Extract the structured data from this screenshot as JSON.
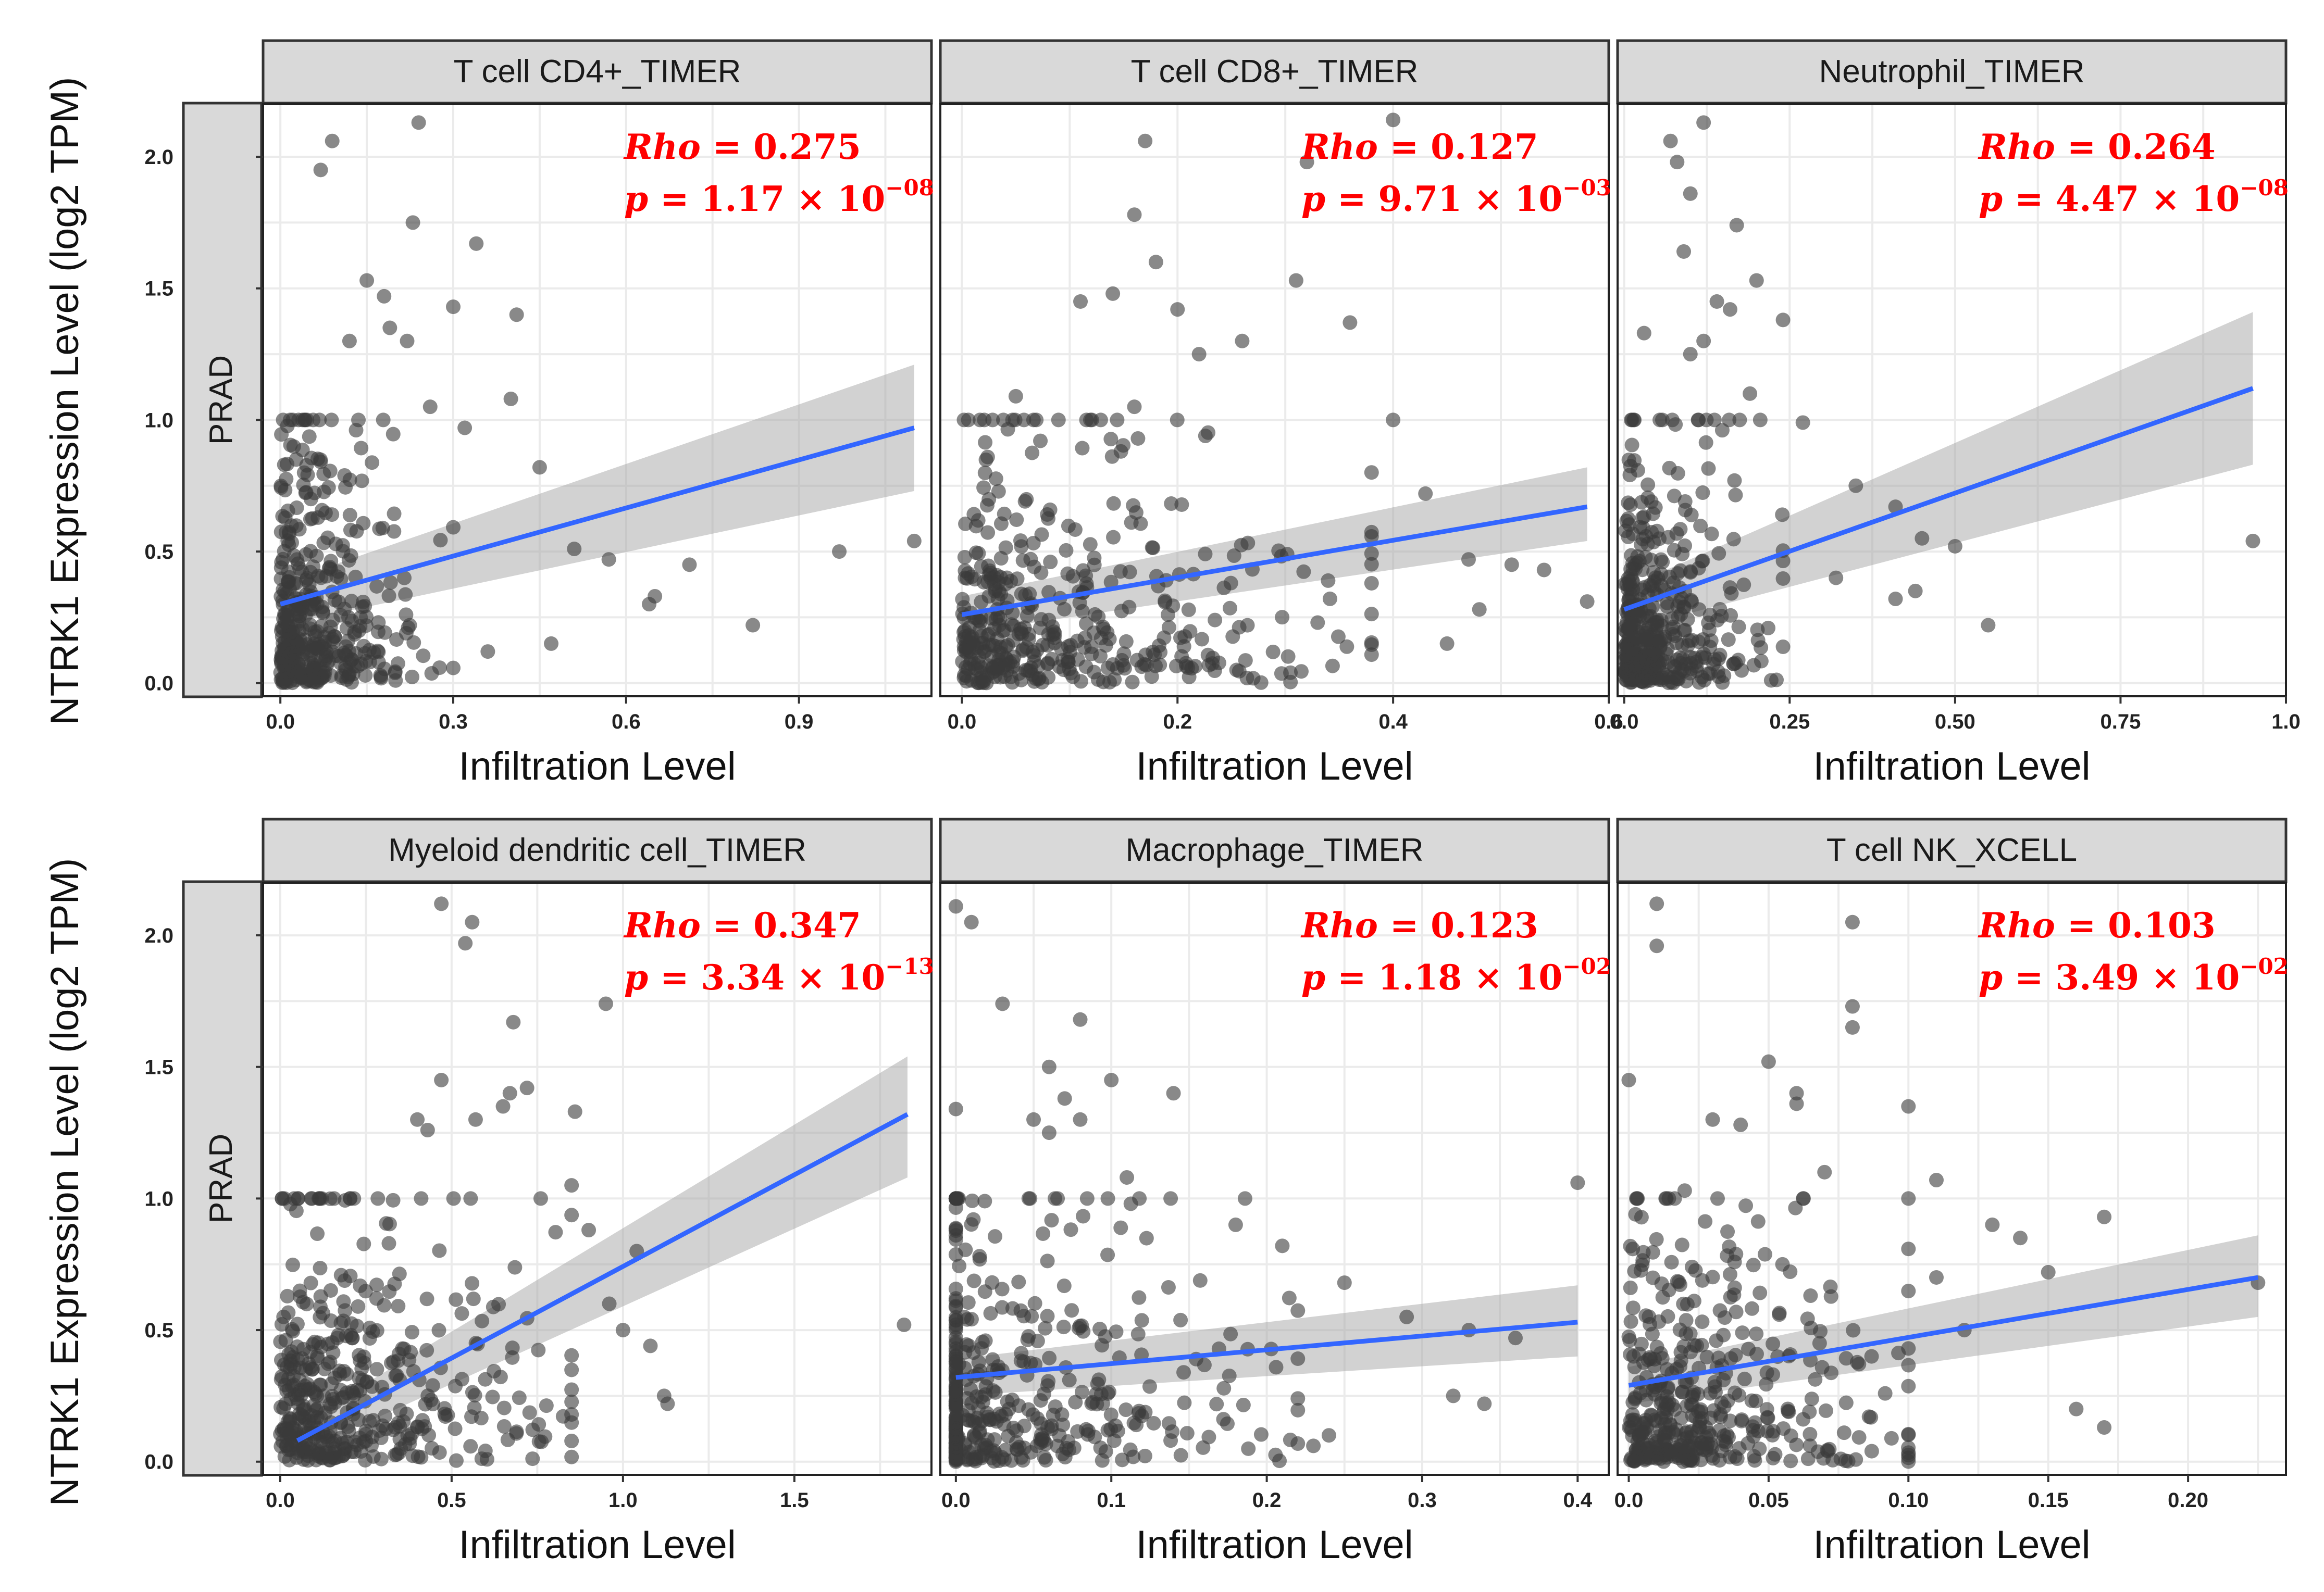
{
  "colors": {
    "strip_fill": "#d9d9d9",
    "strip_border": "#333333",
    "grid": "#ebebeb",
    "point": "#3a3a3a",
    "line": "#3366ff",
    "band": "#a6a6a6",
    "stat": "#ff0000"
  },
  "row_label": "PRAD",
  "y_axis_title": "NTRK1 Expression Level (log2 TPM)",
  "x_axis_title": "Infiltration Level",
  "chart_data": [
    {
      "type": "scatter",
      "title": "T cell CD4+_TIMER",
      "xlabel": "Infiltration Level",
      "ylabel": "NTRK1 Expression Level (log2 TPM)",
      "xlim": [
        -0.03,
        1.13
      ],
      "ylim": [
        -0.05,
        2.2
      ],
      "xticks": [
        "0.0",
        "0.3",
        "0.6",
        "0.9"
      ],
      "yticks": [
        "0.0",
        "0.5",
        "1.0",
        "1.5",
        "2.0"
      ],
      "rho": "0.275",
      "p_mantissa": "1.17",
      "p_exp": "−08",
      "fit": {
        "x": [
          0.0,
          1.1
        ],
        "y": [
          0.3,
          0.97
        ],
        "band_lo": [
          0.22,
          0.73
        ],
        "band_hi": [
          0.38,
          1.21
        ]
      },
      "cluster": {
        "x_max": 0.3,
        "x_decay": 0.07,
        "y_decay": 0.28
      },
      "outliers": [
        [
          0.07,
          1.95
        ],
        [
          0.09,
          2.06
        ],
        [
          0.24,
          2.13
        ],
        [
          0.23,
          1.75
        ],
        [
          0.34,
          1.67
        ],
        [
          0.15,
          1.53
        ],
        [
          0.18,
          1.47
        ],
        [
          0.3,
          1.43
        ],
        [
          0.41,
          1.4
        ],
        [
          0.22,
          1.3
        ],
        [
          0.12,
          1.3
        ],
        [
          0.4,
          1.08
        ],
        [
          0.19,
          1.35
        ],
        [
          0.26,
          1.05
        ],
        [
          0.32,
          0.97
        ],
        [
          0.45,
          0.82
        ],
        [
          0.51,
          0.51
        ],
        [
          0.57,
          0.47
        ],
        [
          0.65,
          0.33
        ],
        [
          0.64,
          0.3
        ],
        [
          0.71,
          0.45
        ],
        [
          0.82,
          0.22
        ],
        [
          0.97,
          0.5
        ],
        [
          1.1,
          0.54
        ],
        [
          0.47,
          0.15
        ],
        [
          0.36,
          0.12
        ]
      ]
    },
    {
      "type": "scatter",
      "title": "T cell CD8+_TIMER",
      "xlabel": "Infiltration Level",
      "ylabel": "NTRK1 Expression Level (log2 TPM)",
      "xlim": [
        -0.02,
        0.6
      ],
      "ylim": [
        -0.05,
        2.2
      ],
      "xticks": [
        "0.0",
        "0.2",
        "0.4",
        "0.6"
      ],
      "yticks": [
        "0.0",
        "0.5",
        "1.0",
        "1.5",
        "2.0"
      ],
      "rho": "0.127",
      "p_mantissa": "9.71",
      "p_exp": "−03",
      "fit": {
        "x": [
          0.0,
          0.58
        ],
        "y": [
          0.26,
          0.67
        ],
        "band_lo": [
          0.19,
          0.54
        ],
        "band_hi": [
          0.33,
          0.82
        ]
      },
      "cluster": {
        "x_max": 0.38,
        "x_decay": 0.11,
        "y_decay": 0.32
      },
      "outliers": [
        [
          0.17,
          2.06
        ],
        [
          0.4,
          2.14
        ],
        [
          0.32,
          1.98
        ],
        [
          0.18,
          1.6
        ],
        [
          0.16,
          1.78
        ],
        [
          0.11,
          1.45
        ],
        [
          0.14,
          1.48
        ],
        [
          0.2,
          1.42
        ],
        [
          0.26,
          1.3
        ],
        [
          0.31,
          1.53
        ],
        [
          0.36,
          1.37
        ],
        [
          0.05,
          1.09
        ],
        [
          0.16,
          1.05
        ],
        [
          0.22,
          1.25
        ],
        [
          0.4,
          1.0
        ],
        [
          0.43,
          0.72
        ],
        [
          0.47,
          0.47
        ],
        [
          0.51,
          0.45
        ],
        [
          0.54,
          0.43
        ],
        [
          0.48,
          0.28
        ],
        [
          0.58,
          0.31
        ],
        [
          0.45,
          0.15
        ],
        [
          0.33,
          0.23
        ]
      ]
    },
    {
      "type": "scatter",
      "title": "Neutrophil_TIMER",
      "xlabel": "Infiltration Level",
      "ylabel": "NTRK1 Expression Level (log2 TPM)",
      "xlim": [
        -0.01,
        1.0
      ],
      "ylim": [
        -0.05,
        2.2
      ],
      "xticks": [
        "0.0",
        "0.25",
        "0.50",
        "0.75",
        "1.0"
      ],
      "yticks": [
        "0.0",
        "0.5",
        "1.0",
        "1.5",
        "2.0"
      ],
      "rho": "0.264",
      "p_mantissa": "4.47",
      "p_exp": "−08",
      "fit": {
        "x": [
          0.0,
          0.95
        ],
        "y": [
          0.28,
          1.12
        ],
        "band_lo": [
          0.2,
          0.83
        ],
        "band_hi": [
          0.36,
          1.41
        ]
      },
      "cluster": {
        "x_max": 0.24,
        "x_decay": 0.06,
        "y_decay": 0.28
      },
      "outliers": [
        [
          0.07,
          2.06
        ],
        [
          0.12,
          2.13
        ],
        [
          0.08,
          1.98
        ],
        [
          0.1,
          1.86
        ],
        [
          0.17,
          1.74
        ],
        [
          0.09,
          1.64
        ],
        [
          0.14,
          1.45
        ],
        [
          0.2,
          1.53
        ],
        [
          0.24,
          1.38
        ],
        [
          0.16,
          1.42
        ],
        [
          0.12,
          1.3
        ],
        [
          0.1,
          1.25
        ],
        [
          0.03,
          1.33
        ],
        [
          0.19,
          1.1
        ],
        [
          0.27,
          0.99
        ],
        [
          0.35,
          0.75
        ],
        [
          0.41,
          0.67
        ],
        [
          0.45,
          0.55
        ],
        [
          0.5,
          0.52
        ],
        [
          0.44,
          0.35
        ],
        [
          0.55,
          0.22
        ],
        [
          0.41,
          0.32
        ],
        [
          0.95,
          0.54
        ],
        [
          0.32,
          0.4
        ]
      ]
    },
    {
      "type": "scatter",
      "title": "Myeloid dendritic cell_TIMER",
      "xlabel": "Infiltration Level",
      "ylabel": "NTRK1 Expression Level (log2 TPM)",
      "xlim": [
        -0.05,
        1.9
      ],
      "ylim": [
        -0.05,
        2.2
      ],
      "xticks": [
        "0.0",
        "0.5",
        "1.0",
        "1.5"
      ],
      "yticks": [
        "0.0",
        "0.5",
        "1.0",
        "1.5",
        "2.0"
      ],
      "rho": "0.347",
      "p_mantissa": "3.34",
      "p_exp": "−13",
      "fit": {
        "x": [
          0.05,
          1.83
        ],
        "y": [
          0.08,
          1.32
        ],
        "band_lo": [
          0.03,
          1.08
        ],
        "band_hi": [
          0.14,
          1.54
        ]
      },
      "cluster": {
        "x_max": 0.85,
        "x_decay": 0.25,
        "y_decay": 0.34
      },
      "outliers": [
        [
          0.47,
          2.12
        ],
        [
          0.56,
          2.05
        ],
        [
          0.54,
          1.97
        ],
        [
          0.68,
          1.67
        ],
        [
          0.95,
          1.74
        ],
        [
          0.67,
          1.4
        ],
        [
          0.65,
          1.35
        ],
        [
          0.72,
          1.42
        ],
        [
          0.57,
          1.3
        ],
        [
          0.47,
          1.45
        ],
        [
          0.4,
          1.3
        ],
        [
          0.43,
          1.26
        ],
        [
          0.86,
          1.33
        ],
        [
          0.76,
          1.0
        ],
        [
          0.85,
          1.05
        ],
        [
          0.9,
          0.88
        ],
        [
          1.0,
          0.5
        ],
        [
          1.08,
          0.44
        ],
        [
          1.12,
          0.25
        ],
        [
          1.13,
          0.22
        ],
        [
          1.82,
          0.52
        ],
        [
          0.96,
          0.6
        ],
        [
          1.04,
          0.8
        ]
      ]
    },
    {
      "type": "scatter",
      "title": "Macrophage_TIMER",
      "xlabel": "Infiltration Level",
      "ylabel": "NTRK1 Expression Level (log2 TPM)",
      "xlim": [
        -0.01,
        0.42
      ],
      "ylim": [
        -0.05,
        2.2
      ],
      "xticks": [
        "0.0",
        "0.1",
        "0.2",
        "0.3",
        "0.4"
      ],
      "yticks": [
        "0.0",
        "0.5",
        "1.0",
        "1.5",
        "2.0"
      ],
      "rho": "0.123",
      "p_mantissa": "1.18",
      "p_exp": "−02",
      "fit": {
        "x": [
          0.0,
          0.4
        ],
        "y": [
          0.32,
          0.53
        ],
        "band_lo": [
          0.25,
          0.4
        ],
        "band_hi": [
          0.39,
          0.67
        ]
      },
      "cluster": {
        "x_max": 0.22,
        "x_decay": 0.07,
        "y_decay": 0.3
      },
      "zero_column": true,
      "outliers": [
        [
          0.0,
          2.11
        ],
        [
          0.01,
          2.05
        ],
        [
          0.03,
          1.74
        ],
        [
          0.08,
          1.68
        ],
        [
          0.06,
          1.5
        ],
        [
          0.07,
          1.38
        ],
        [
          0.1,
          1.45
        ],
        [
          0.14,
          1.4
        ],
        [
          0.05,
          1.3
        ],
        [
          0.06,
          1.25
        ],
        [
          0.0,
          1.34
        ],
        [
          0.08,
          1.3
        ],
        [
          0.11,
          1.08
        ],
        [
          0.18,
          0.9
        ],
        [
          0.4,
          1.06
        ],
        [
          0.21,
          0.82
        ],
        [
          0.25,
          0.68
        ],
        [
          0.29,
          0.55
        ],
        [
          0.33,
          0.5
        ],
        [
          0.36,
          0.47
        ],
        [
          0.32,
          0.25
        ],
        [
          0.34,
          0.22
        ],
        [
          0.24,
          0.1
        ],
        [
          0.23,
          0.06
        ]
      ]
    },
    {
      "type": "scatter",
      "title": "T cell NK_XCELL",
      "xlabel": "Infiltration Level",
      "ylabel": "NTRK1 Expression Level (log2 TPM)",
      "xlim": [
        -0.004,
        0.235
      ],
      "ylim": [
        -0.05,
        2.2
      ],
      "xticks": [
        "0.0",
        "0.05",
        "0.10",
        "0.15",
        "0.20"
      ],
      "yticks": [
        "0.0",
        "0.5",
        "1.0",
        "1.5",
        "2.0"
      ],
      "rho": "0.103",
      "p_mantissa": "3.49",
      "p_exp": "−02",
      "fit": {
        "x": [
          0.0,
          0.225
        ],
        "y": [
          0.29,
          0.7
        ],
        "band_lo": [
          0.22,
          0.55
        ],
        "band_hi": [
          0.36,
          0.86
        ]
      },
      "cluster": {
        "x_max": 0.1,
        "x_decay": 0.032,
        "y_decay": 0.28
      },
      "outliers": [
        [
          0.01,
          2.12
        ],
        [
          0.01,
          1.96
        ],
        [
          0.08,
          2.05
        ],
        [
          0.08,
          1.73
        ],
        [
          0.08,
          1.65
        ],
        [
          0.05,
          1.52
        ],
        [
          0.06,
          1.4
        ],
        [
          0.06,
          1.36
        ],
        [
          0.1,
          1.35
        ],
        [
          0.0,
          1.45
        ],
        [
          0.03,
          1.3
        ],
        [
          0.04,
          1.28
        ],
        [
          0.07,
          1.1
        ],
        [
          0.11,
          1.07
        ],
        [
          0.02,
          1.03
        ],
        [
          0.13,
          0.9
        ],
        [
          0.14,
          0.85
        ],
        [
          0.17,
          0.93
        ],
        [
          0.15,
          0.72
        ],
        [
          0.11,
          0.7
        ],
        [
          0.16,
          0.2
        ],
        [
          0.17,
          0.13
        ],
        [
          0.225,
          0.68
        ],
        [
          0.12,
          0.5
        ]
      ]
    }
  ]
}
